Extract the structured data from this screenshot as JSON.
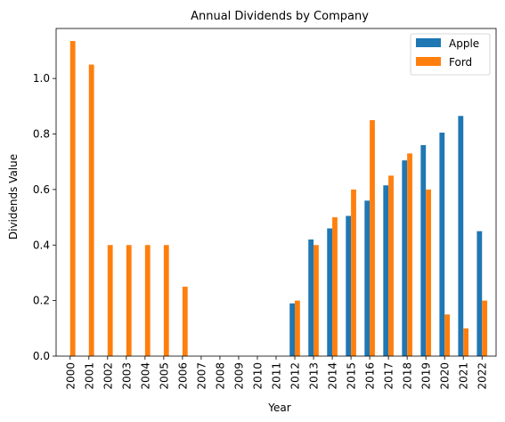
{
  "chart_data": {
    "type": "bar",
    "title": "Annual Dividends by Company",
    "xlabel": "Year",
    "ylabel": "Dividends Value",
    "categories": [
      "2000",
      "2001",
      "2002",
      "2003",
      "2004",
      "2005",
      "2006",
      "2007",
      "2008",
      "2009",
      "2010",
      "2011",
      "2012",
      "2013",
      "2014",
      "2015",
      "2016",
      "2017",
      "2018",
      "2019",
      "2020",
      "2021",
      "2022"
    ],
    "series": [
      {
        "name": "Apple",
        "color": "#1f77b4",
        "values": [
          0,
          0,
          0,
          0,
          0,
          0,
          0,
          0,
          0,
          0,
          0,
          0,
          0.19,
          0.42,
          0.46,
          0.505,
          0.56,
          0.615,
          0.705,
          0.76,
          0.805,
          0.865,
          0.45
        ]
      },
      {
        "name": "Ford",
        "color": "#ff7f0e",
        "values": [
          1.135,
          1.05,
          0.4,
          0.4,
          0.4,
          0.4,
          0.25,
          0,
          0,
          0,
          0,
          0,
          0.2,
          0.4,
          0.5,
          0.6,
          0.85,
          0.65,
          0.73,
          0.6,
          0.15,
          0.1,
          0.2
        ]
      }
    ],
    "ylim": [
      0,
      1.18
    ],
    "yticks": [
      "0.0",
      "0.2",
      "0.4",
      "0.6",
      "0.8",
      "1.0"
    ],
    "ytick_values": [
      0,
      0.2,
      0.4,
      0.6,
      0.8,
      1.0
    ],
    "grid": false,
    "legend_position": "top-right"
  }
}
